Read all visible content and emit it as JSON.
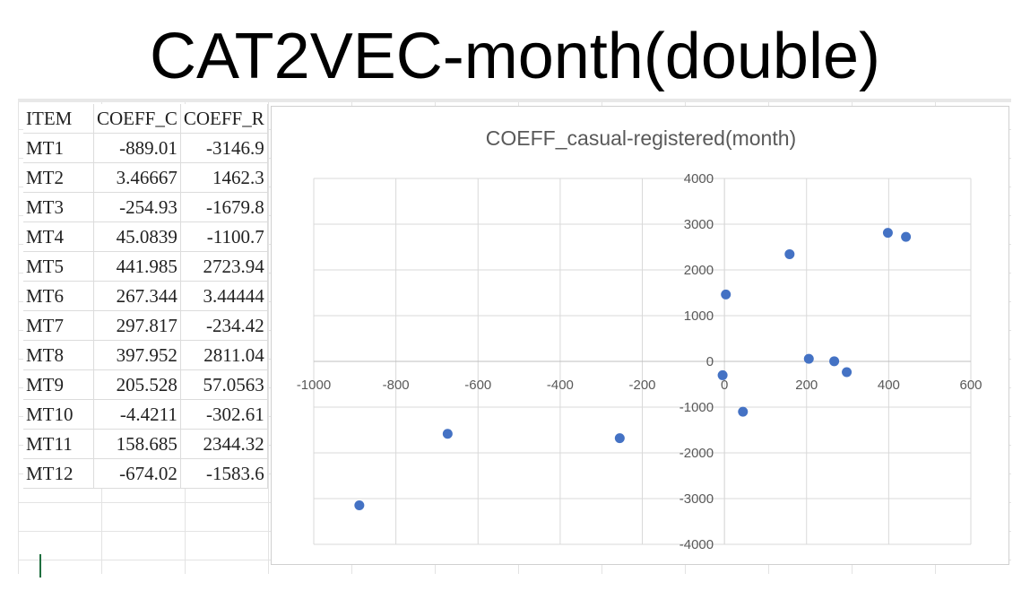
{
  "slide_title": "CAT2VEC-month(double)",
  "table": {
    "headers": [
      "ITEM",
      "COEFF_C",
      "COEFF_R"
    ],
    "rows": [
      [
        "MT1",
        "-889.01",
        "-3146.9"
      ],
      [
        "MT2",
        "3.46667",
        "1462.3"
      ],
      [
        "MT3",
        "-254.93",
        "-1679.8"
      ],
      [
        "MT4",
        "45.0839",
        "-1100.7"
      ],
      [
        "MT5",
        "441.985",
        "2723.94"
      ],
      [
        "MT6",
        "267.344",
        "3.44444"
      ],
      [
        "MT7",
        "297.817",
        "-234.42"
      ],
      [
        "MT8",
        "397.952",
        "2811.04"
      ],
      [
        "MT9",
        "205.528",
        "57.0563"
      ],
      [
        "MT10",
        "-4.4211",
        "-302.61"
      ],
      [
        "MT11",
        "158.685",
        "2344.32"
      ],
      [
        "MT12",
        "-674.02",
        "-1583.6"
      ]
    ]
  },
  "chart_data": {
    "type": "scatter",
    "title": "COEFF_casual-registered(month)",
    "xlabel": "",
    "ylabel": "",
    "xlim": [
      -1000,
      600
    ],
    "ylim": [
      -4000,
      4000
    ],
    "x_ticks": [
      -1000,
      -800,
      -600,
      -400,
      -200,
      0,
      200,
      400,
      600
    ],
    "y_ticks": [
      -4000,
      -3000,
      -2000,
      -1000,
      0,
      1000,
      2000,
      3000,
      4000
    ],
    "grid": true,
    "marker_color": "#4472C4",
    "series": [
      {
        "points": [
          [
            -889.01,
            -3146.9
          ],
          [
            3.46667,
            1462.3
          ],
          [
            -254.93,
            -1679.8
          ],
          [
            45.0839,
            -1100.7
          ],
          [
            441.985,
            2723.94
          ],
          [
            267.344,
            3.44444
          ],
          [
            297.817,
            -234.42
          ],
          [
            397.952,
            2811.04
          ],
          [
            205.528,
            57.0563
          ],
          [
            -4.4211,
            -302.61
          ],
          [
            158.685,
            2344.32
          ],
          [
            -674.02,
            -1583.6
          ]
        ]
      }
    ]
  }
}
